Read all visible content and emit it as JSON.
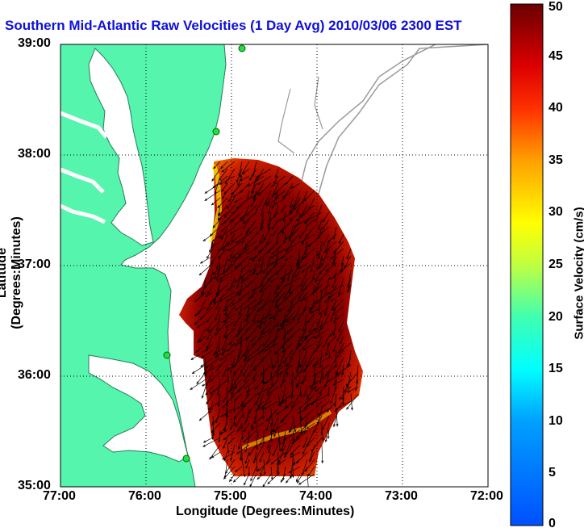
{
  "title": "Southern Mid-Atlantic Raw Velocities (1 Day Avg) 2010/03/06 2300 EST",
  "chart_data": {
    "type": "heatmap",
    "subtype": "ocean surface current vector map",
    "title": "Southern Mid-Atlantic Raw Velocities (1 Day Avg) 2010/03/06 2300 EST",
    "xlabel": "Longitude (Degrees:Minutes)",
    "ylabel": "Latitude (Degrees:Minutes)",
    "x_ticks": [
      "77:00",
      "76:00",
      "75:00",
      "74:00",
      "73:00",
      "72:00"
    ],
    "y_ticks": [
      "39:00",
      "38:00",
      "37:00",
      "36:00",
      "35:00"
    ],
    "xlim_deg_west": [
      77,
      72
    ],
    "ylim_deg_north": [
      35,
      39
    ],
    "grid": "dotted",
    "colorbar": {
      "label": "Surface Velocity (cm/s)",
      "ticks": [
        "0",
        "5",
        "10",
        "15",
        "20",
        "25",
        "30",
        "35",
        "40",
        "45",
        "50"
      ],
      "range": [
        0,
        50
      ],
      "colormap": "jet"
    },
    "colors": {
      "land": "#55f5ae",
      "land_edge": "#2a7a55",
      "station": "#22dd44",
      "title": "#1010d8"
    }
  }
}
